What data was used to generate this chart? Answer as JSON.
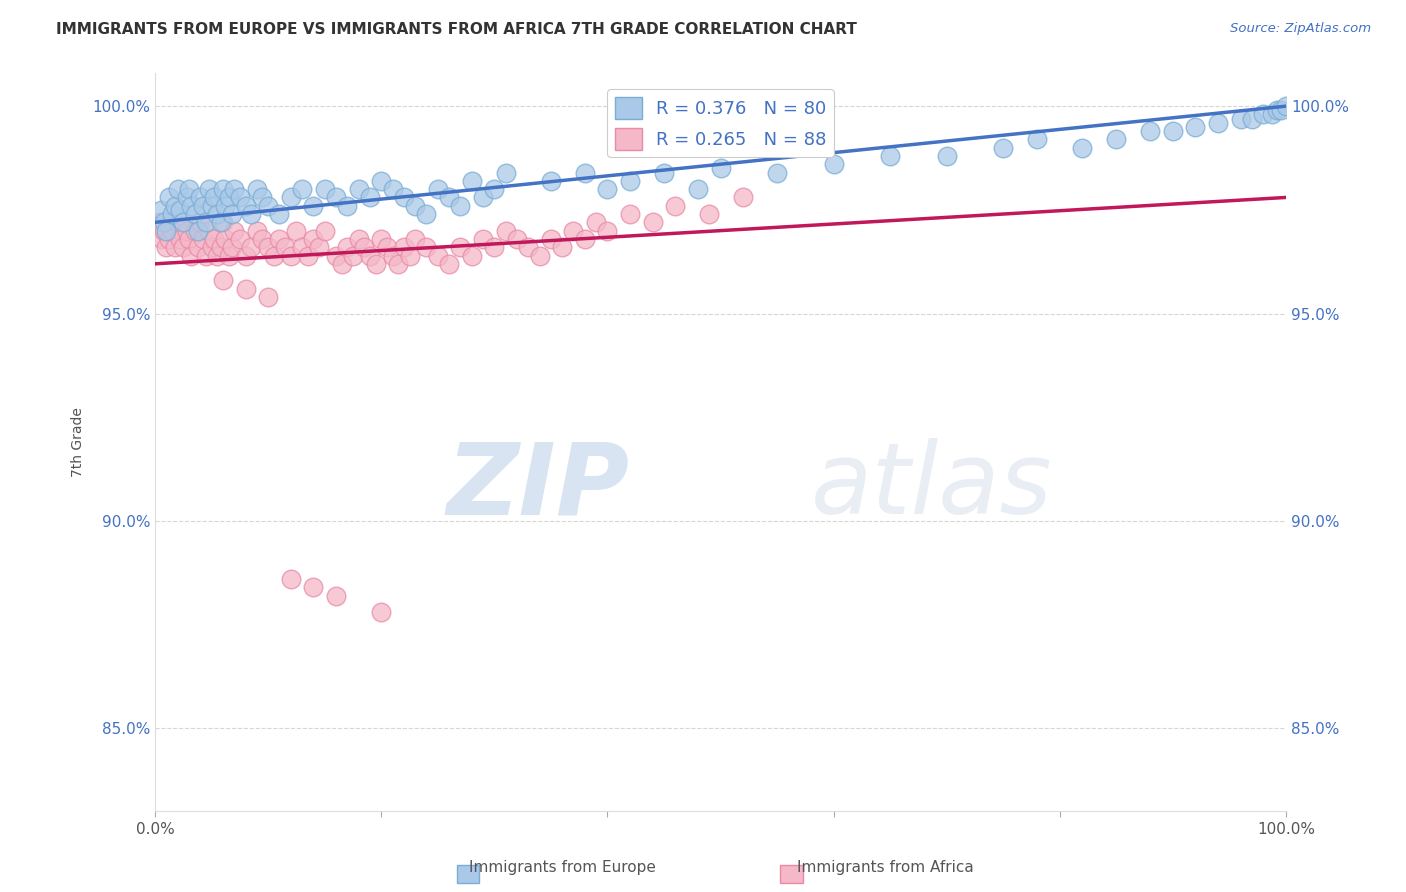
{
  "title": "IMMIGRANTS FROM EUROPE VS IMMIGRANTS FROM AFRICA 7TH GRADE CORRELATION CHART",
  "source": "Source: ZipAtlas.com",
  "ylabel": "7th Grade",
  "xlim": [
    0.0,
    1.0
  ],
  "ylim": [
    0.83,
    1.008
  ],
  "yticks": [
    0.85,
    0.9,
    0.95,
    1.0
  ],
  "ytick_labels": [
    "85.0%",
    "90.0%",
    "95.0%",
    "100.0%"
  ],
  "xticks": [
    0.0,
    0.2,
    0.4,
    0.6,
    0.8,
    1.0
  ],
  "xtick_labels": [
    "0.0%",
    "",
    "",
    "",
    "",
    "100.0%"
  ],
  "europe_color": "#aac9e8",
  "africa_color": "#f4b8c8",
  "europe_edge": "#7aadd4",
  "africa_edge": "#e88aa8",
  "trend_europe_color": "#4472c4",
  "trend_africa_color": "#c0185a",
  "legend_europe_label": "R = 0.376   N = 80",
  "legend_africa_label": "R = 0.265   N = 88",
  "watermark_zip": "ZIP",
  "watermark_atlas": "atlas",
  "background_color": "#ffffff",
  "grid_color": "#cccccc",
  "europe_x": [
    0.005,
    0.008,
    0.01,
    0.012,
    0.015,
    0.018,
    0.02,
    0.022,
    0.025,
    0.028,
    0.03,
    0.032,
    0.035,
    0.038,
    0.04,
    0.042,
    0.045,
    0.048,
    0.05,
    0.052,
    0.055,
    0.058,
    0.06,
    0.062,
    0.065,
    0.068,
    0.07,
    0.075,
    0.08,
    0.085,
    0.09,
    0.095,
    0.1,
    0.11,
    0.12,
    0.13,
    0.14,
    0.15,
    0.16,
    0.17,
    0.18,
    0.19,
    0.2,
    0.21,
    0.22,
    0.23,
    0.24,
    0.25,
    0.26,
    0.27,
    0.28,
    0.29,
    0.3,
    0.31,
    0.35,
    0.38,
    0.4,
    0.42,
    0.45,
    0.48,
    0.5,
    0.55,
    0.6,
    0.65,
    0.7,
    0.75,
    0.78,
    0.82,
    0.85,
    0.88,
    0.9,
    0.92,
    0.94,
    0.96,
    0.97,
    0.98,
    0.988,
    0.992,
    0.996,
    1.0
  ],
  "europe_y": [
    0.975,
    0.972,
    0.97,
    0.978,
    0.974,
    0.976,
    0.98,
    0.975,
    0.972,
    0.978,
    0.98,
    0.976,
    0.974,
    0.97,
    0.978,
    0.976,
    0.972,
    0.98,
    0.976,
    0.978,
    0.974,
    0.972,
    0.98,
    0.976,
    0.978,
    0.974,
    0.98,
    0.978,
    0.976,
    0.974,
    0.98,
    0.978,
    0.976,
    0.974,
    0.978,
    0.98,
    0.976,
    0.98,
    0.978,
    0.976,
    0.98,
    0.978,
    0.982,
    0.98,
    0.978,
    0.976,
    0.974,
    0.98,
    0.978,
    0.976,
    0.982,
    0.978,
    0.98,
    0.984,
    0.982,
    0.984,
    0.98,
    0.982,
    0.984,
    0.98,
    0.985,
    0.984,
    0.986,
    0.988,
    0.988,
    0.99,
    0.992,
    0.99,
    0.992,
    0.994,
    0.994,
    0.995,
    0.996,
    0.997,
    0.997,
    0.998,
    0.998,
    0.999,
    0.999,
    1.0
  ],
  "africa_x": [
    0.004,
    0.006,
    0.008,
    0.01,
    0.012,
    0.015,
    0.018,
    0.02,
    0.022,
    0.025,
    0.028,
    0.03,
    0.032,
    0.035,
    0.038,
    0.04,
    0.042,
    0.045,
    0.048,
    0.05,
    0.052,
    0.055,
    0.058,
    0.06,
    0.062,
    0.065,
    0.068,
    0.07,
    0.075,
    0.08,
    0.085,
    0.09,
    0.095,
    0.1,
    0.105,
    0.11,
    0.115,
    0.12,
    0.125,
    0.13,
    0.135,
    0.14,
    0.145,
    0.15,
    0.16,
    0.165,
    0.17,
    0.175,
    0.18,
    0.185,
    0.19,
    0.195,
    0.2,
    0.205,
    0.21,
    0.215,
    0.22,
    0.225,
    0.23,
    0.24,
    0.25,
    0.26,
    0.27,
    0.28,
    0.29,
    0.3,
    0.31,
    0.32,
    0.33,
    0.34,
    0.35,
    0.36,
    0.37,
    0.38,
    0.39,
    0.4,
    0.42,
    0.44,
    0.46,
    0.49,
    0.52,
    0.06,
    0.08,
    0.1,
    0.12,
    0.14,
    0.16,
    0.2
  ],
  "africa_y": [
    0.972,
    0.968,
    0.97,
    0.966,
    0.968,
    0.97,
    0.966,
    0.972,
    0.968,
    0.966,
    0.97,
    0.968,
    0.964,
    0.97,
    0.966,
    0.972,
    0.968,
    0.964,
    0.97,
    0.966,
    0.968,
    0.964,
    0.966,
    0.972,
    0.968,
    0.964,
    0.966,
    0.97,
    0.968,
    0.964,
    0.966,
    0.97,
    0.968,
    0.966,
    0.964,
    0.968,
    0.966,
    0.964,
    0.97,
    0.966,
    0.964,
    0.968,
    0.966,
    0.97,
    0.964,
    0.962,
    0.966,
    0.964,
    0.968,
    0.966,
    0.964,
    0.962,
    0.968,
    0.966,
    0.964,
    0.962,
    0.966,
    0.964,
    0.968,
    0.966,
    0.964,
    0.962,
    0.966,
    0.964,
    0.968,
    0.966,
    0.97,
    0.968,
    0.966,
    0.964,
    0.968,
    0.966,
    0.97,
    0.968,
    0.972,
    0.97,
    0.974,
    0.972,
    0.976,
    0.974,
    0.978,
    0.958,
    0.956,
    0.954,
    0.886,
    0.884,
    0.882,
    0.878
  ],
  "europe_trendline": [
    0.972,
    1.0
  ],
  "africa_trendline": [
    0.962,
    0.978
  ],
  "trend_x": [
    0.0,
    1.0
  ]
}
